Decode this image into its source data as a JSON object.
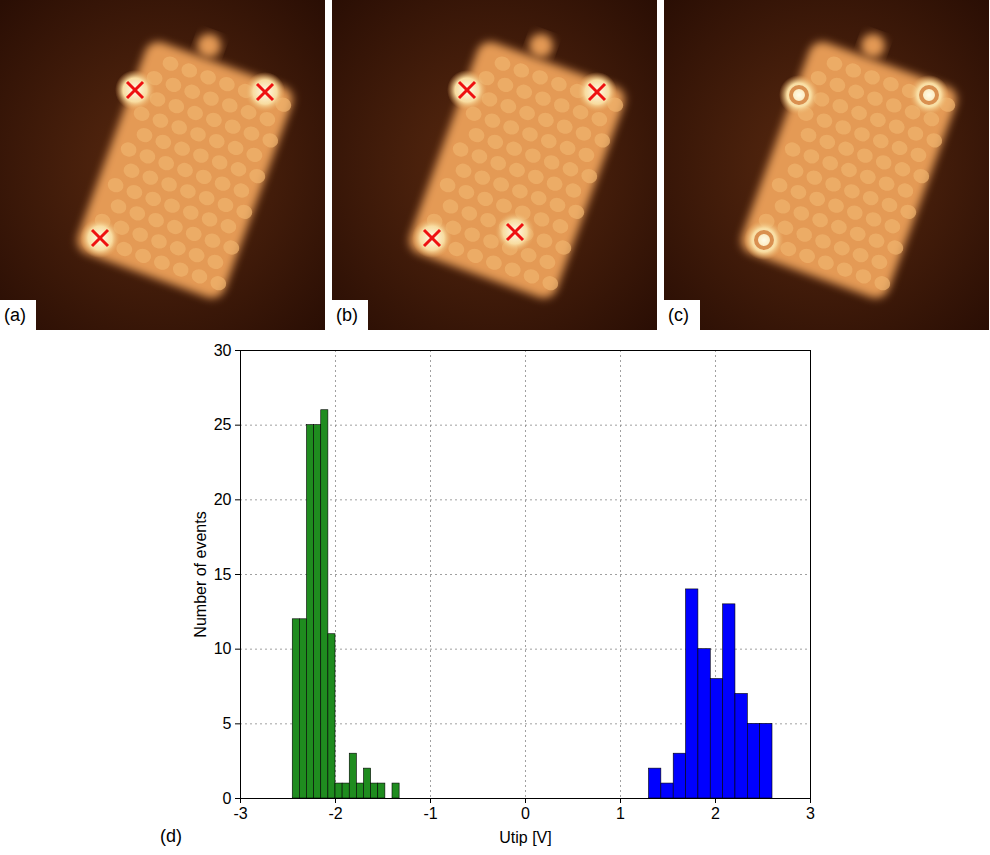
{
  "panels": [
    {
      "label": "(a)"
    },
    {
      "label": "(b)"
    },
    {
      "label": "(c)"
    }
  ],
  "chart_data": {
    "type": "histogram",
    "panel_label": "(d)",
    "x_label": "Utip [V]",
    "y_label": "Number of events",
    "series": [
      {
        "color": "#1f8c1f",
        "bins": [
          -2.45,
          -2.375,
          -2.3,
          -2.225,
          -2.15,
          -2.075,
          -2.0,
          -1.925,
          -1.85,
          -1.775,
          -1.7,
          -1.625,
          -1.55,
          -1.475,
          -1.4,
          -1.325
        ],
        "counts": [
          12,
          12,
          25,
          25,
          26,
          11,
          1,
          1,
          3,
          1,
          2,
          1,
          1,
          0,
          1
        ]
      },
      {
        "color": "#0000ff",
        "bins": [
          1.3,
          1.43,
          1.56,
          1.69,
          1.82,
          1.95,
          2.08,
          2.21,
          2.34,
          2.47,
          2.6
        ],
        "counts": [
          2,
          1,
          3,
          14,
          10,
          8,
          13,
          7,
          5,
          5
        ]
      }
    ],
    "xlim": [
      -3,
      3
    ],
    "xticks": [
      -3,
      -2,
      -1,
      0,
      1,
      2,
      3
    ],
    "ylim": [
      0,
      30
    ],
    "yticks": [
      0,
      5,
      10,
      15,
      20,
      25,
      30
    ],
    "grid": true
  }
}
